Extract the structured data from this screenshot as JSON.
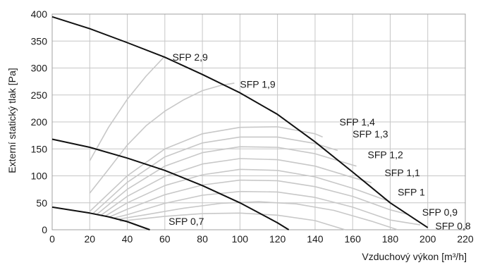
{
  "chart_data": {
    "type": "line",
    "xlabel": "Vzduchový výkon [m³/h]",
    "ylabel": "Externí statický tlak [Pa]",
    "xlim": [
      0,
      220
    ],
    "ylim": [
      0,
      400
    ],
    "x_ticks": [
      "0",
      "20",
      "40",
      "60",
      "80",
      "100",
      "120",
      "140",
      "160",
      "180",
      "200",
      "220"
    ],
    "y_ticks": [
      "0",
      "50",
      "100",
      "150",
      "200",
      "250",
      "300",
      "350",
      "400"
    ],
    "grid": true,
    "colors": {
      "fan_curve": "#111111",
      "sfp_curve": "#c8c8c8"
    },
    "fan_curves": [
      {
        "points": [
          [
            0,
            395
          ],
          [
            20,
            373
          ],
          [
            40,
            347
          ],
          [
            60,
            320
          ],
          [
            80,
            288
          ],
          [
            100,
            254
          ],
          [
            120,
            214
          ],
          [
            140,
            163
          ],
          [
            160,
            107
          ],
          [
            180,
            50
          ],
          [
            200,
            4
          ]
        ]
      },
      {
        "points": [
          [
            0,
            168
          ],
          [
            20,
            153
          ],
          [
            40,
            133
          ],
          [
            60,
            110
          ],
          [
            80,
            82
          ],
          [
            100,
            50
          ],
          [
            120,
            13
          ],
          [
            126,
            0
          ]
        ]
      },
      {
        "points": [
          [
            0,
            42
          ],
          [
            20,
            31
          ],
          [
            30,
            24
          ],
          [
            40,
            15
          ],
          [
            52,
            0
          ]
        ]
      }
    ],
    "sfp_curves": [
      {
        "label": "SFP 2,9",
        "label_at": [
          64,
          320
        ],
        "points": [
          [
            20,
            128
          ],
          [
            30,
            190
          ],
          [
            40,
            242
          ],
          [
            50,
            285
          ],
          [
            60,
            322
          ]
        ]
      },
      {
        "label": "SFP 1,9",
        "label_at": [
          100,
          270
        ],
        "points": [
          [
            20,
            68
          ],
          [
            30,
            112
          ],
          [
            40,
            157
          ],
          [
            50,
            193
          ],
          [
            60,
            220
          ],
          [
            70,
            241
          ],
          [
            80,
            258
          ],
          [
            90,
            268
          ],
          [
            97,
            272
          ]
        ]
      },
      {
        "label": "SFP 1,4",
        "label_at": [
          153,
          200
        ],
        "points": [
          [
            20,
            34
          ],
          [
            40,
            100
          ],
          [
            60,
            150
          ],
          [
            80,
            178
          ],
          [
            100,
            190
          ],
          [
            120,
            191
          ],
          [
            140,
            178
          ],
          [
            144,
            172
          ]
        ]
      },
      {
        "label": "SFP 1,3",
        "label_at": [
          160,
          178
        ],
        "points": [
          [
            22,
            31
          ],
          [
            40,
            88
          ],
          [
            60,
            135
          ],
          [
            80,
            161
          ],
          [
            100,
            172
          ],
          [
            120,
            172
          ],
          [
            140,
            160
          ],
          [
            152,
            147
          ]
        ]
      },
      {
        "label": "SFP 1,2",
        "label_at": [
          168,
          139
        ],
        "points": [
          [
            24,
            29
          ],
          [
            40,
            75
          ],
          [
            60,
            118
          ],
          [
            80,
            143
          ],
          [
            100,
            154
          ],
          [
            120,
            153
          ],
          [
            140,
            141
          ],
          [
            160,
            120
          ],
          [
            162,
            118
          ]
        ]
      },
      {
        "label": "SFP 1,1",
        "label_at": [
          177,
          106
        ],
        "points": [
          [
            26,
            27
          ],
          [
            40,
            62
          ],
          [
            60,
            99
          ],
          [
            80,
            122
          ],
          [
            100,
            132
          ],
          [
            120,
            130
          ],
          [
            140,
            118
          ],
          [
            160,
            97
          ],
          [
            170,
            87
          ]
        ]
      },
      {
        "label": "SFP 1",
        "label_at": [
          184,
          70
        ],
        "points": [
          [
            28,
            25
          ],
          [
            40,
            50
          ],
          [
            60,
            82
          ],
          [
            80,
            102
          ],
          [
            100,
            112
          ],
          [
            120,
            110
          ],
          [
            140,
            98
          ],
          [
            160,
            77
          ],
          [
            180,
            52
          ]
        ]
      },
      {
        "label": "SFP 0,9",
        "label_at": [
          197,
          33
        ],
        "points": [
          [
            30,
            23
          ],
          [
            40,
            38
          ],
          [
            60,
            65
          ],
          [
            80,
            83
          ],
          [
            100,
            92
          ],
          [
            120,
            91
          ],
          [
            140,
            80
          ],
          [
            160,
            62
          ],
          [
            180,
            37
          ],
          [
            190,
            28
          ]
        ]
      },
      {
        "label": "SFP 0,8",
        "label_at": [
          204,
          7
        ],
        "points": [
          [
            32,
            21
          ],
          [
            40,
            28
          ],
          [
            60,
            49
          ],
          [
            80,
            64
          ],
          [
            100,
            71
          ],
          [
            120,
            70
          ],
          [
            140,
            60
          ],
          [
            160,
            42
          ],
          [
            180,
            18
          ],
          [
            196,
            9
          ]
        ]
      },
      {
        "label": "",
        "points": [
          [
            34,
            19
          ],
          [
            50,
            28
          ],
          [
            70,
            40
          ],
          [
            90,
            49
          ],
          [
            110,
            52
          ],
          [
            130,
            48
          ],
          [
            150,
            36
          ],
          [
            170,
            16
          ],
          [
            184,
            0
          ]
        ]
      },
      {
        "label": "SFP 0,7",
        "label_at": [
          62,
          16
        ],
        "points": [
          [
            36,
            16
          ],
          [
            60,
            25
          ],
          [
            80,
            30
          ],
          [
            100,
            31
          ],
          [
            120,
            27
          ],
          [
            140,
            17
          ],
          [
            156,
            0
          ]
        ]
      }
    ]
  }
}
